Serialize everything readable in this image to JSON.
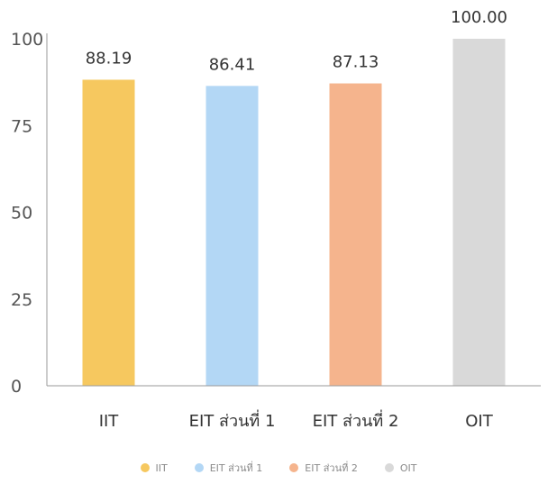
{
  "chart_data": {
    "type": "bar",
    "categories": [
      "IIT",
      "EIT ส่วนที่ 1",
      "EIT ส่วนที่ 2",
      "OIT"
    ],
    "values": [
      88.19,
      86.41,
      87.13,
      100.0
    ],
    "value_labels": [
      "88.19",
      "86.41",
      "87.13",
      "100.00"
    ],
    "colors": [
      "#f6c85f",
      "#b3d7f5",
      "#f5b48d",
      "#d9d9d9"
    ],
    "ylim": [
      0,
      100
    ],
    "yticks": [
      0,
      25,
      50,
      75,
      100
    ],
    "grid": false,
    "legend_position": "bottom",
    "title": "",
    "xlabel": "",
    "ylabel": ""
  },
  "legend": [
    {
      "label": "IIT",
      "color": "#f6c85f"
    },
    {
      "label": "EIT ส่วนที่ 1",
      "color": "#b3d7f5"
    },
    {
      "label": "EIT ส่วนที่ 2",
      "color": "#f5b48d"
    },
    {
      "label": "OIT",
      "color": "#d9d9d9"
    }
  ]
}
